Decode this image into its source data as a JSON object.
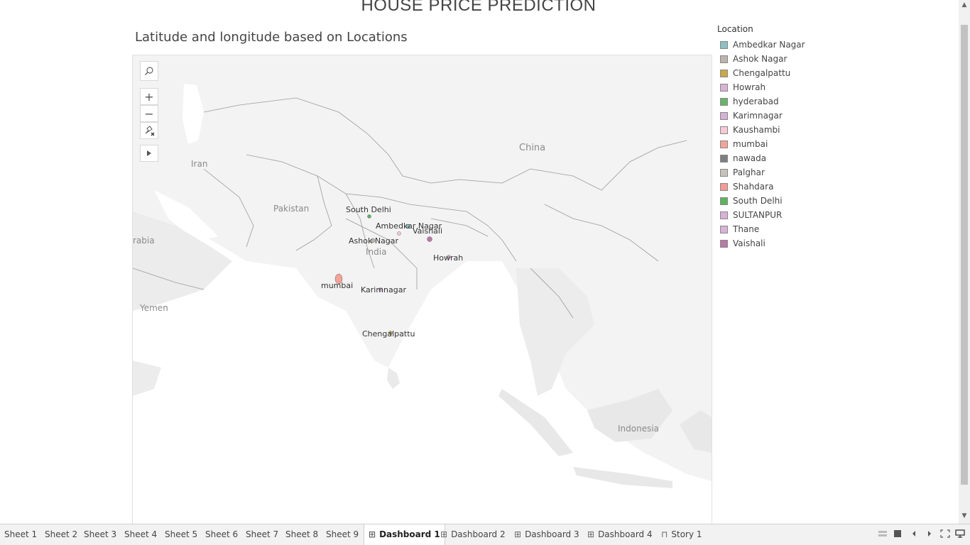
{
  "dashboard": {
    "title": "HOUSE PRICE PREDICTION"
  },
  "sheet": {
    "title": "Latitude and longitude based on Locations"
  },
  "map": {
    "countries": [
      "China",
      "Iran",
      "Pakistan",
      "India",
      "rabia",
      "Yemen",
      "Indonesia"
    ],
    "locations": [
      {
        "name": "South Delhi",
        "color": "#5fb35f"
      },
      {
        "name": "Ambedkar Nagar",
        "color": "#8cc1c1"
      },
      {
        "name": "Vaishali",
        "color": "#b87aa6"
      },
      {
        "name": "Ashok Nagar",
        "color": "#bdb3ad"
      },
      {
        "name": "Howrah",
        "color": "#d9b3d5"
      },
      {
        "name": "mumbai",
        "color": "#f4a39a"
      },
      {
        "name": "Karimnagar",
        "color": "#d4b2d6"
      },
      {
        "name": "Chengalpattu",
        "color": "#c8a84a"
      }
    ],
    "tools": {
      "search_icon": "magnifier-icon",
      "zoom_in": "+",
      "zoom_out": "−",
      "pin_icon": "unpin-icon",
      "expand_icon": "play-icon"
    }
  },
  "legend": {
    "title": "Location",
    "items": [
      {
        "label": "Ambedkar Nagar",
        "color": "#8cc1c1"
      },
      {
        "label": "Ashok Nagar",
        "color": "#bdb3ad"
      },
      {
        "label": "Chengalpattu",
        "color": "#c8a84a"
      },
      {
        "label": "Howrah",
        "color": "#d9b3d5"
      },
      {
        "label": "hyderabad",
        "color": "#6bb36b"
      },
      {
        "label": "Karimnagar",
        "color": "#d4b2d6"
      },
      {
        "label": "Kaushambi",
        "color": "#f7c9d6"
      },
      {
        "label": "mumbai",
        "color": "#f4a39a"
      },
      {
        "label": "nawada",
        "color": "#7f7f7f"
      },
      {
        "label": "Palghar",
        "color": "#c9c2bb"
      },
      {
        "label": "Shahdara",
        "color": "#f59b93"
      },
      {
        "label": "South Delhi",
        "color": "#5fb35f"
      },
      {
        "label": "SULTANPUR",
        "color": "#d8b2d7"
      },
      {
        "label": "Thane",
        "color": "#d9b3d8"
      },
      {
        "label": "Vaishali",
        "color": "#b87aa6"
      }
    ]
  },
  "tabs": [
    {
      "label": "Sheet 1",
      "type": "sheet"
    },
    {
      "label": "Sheet 2",
      "type": "sheet"
    },
    {
      "label": "Sheet 3",
      "type": "sheet"
    },
    {
      "label": "Sheet 4",
      "type": "sheet"
    },
    {
      "label": "Sheet 5",
      "type": "sheet"
    },
    {
      "label": "Sheet 6",
      "type": "sheet"
    },
    {
      "label": "Sheet 7",
      "type": "sheet"
    },
    {
      "label": "Sheet 8",
      "type": "sheet"
    },
    {
      "label": "Sheet 9",
      "type": "sheet"
    },
    {
      "label": "Dashboard 1",
      "type": "dashboard",
      "active": true
    },
    {
      "label": "Dashboard 2",
      "type": "dashboard"
    },
    {
      "label": "Dashboard 3",
      "type": "dashboard"
    },
    {
      "label": "Dashboard 4",
      "type": "dashboard"
    },
    {
      "label": "Story 1",
      "type": "story"
    }
  ]
}
